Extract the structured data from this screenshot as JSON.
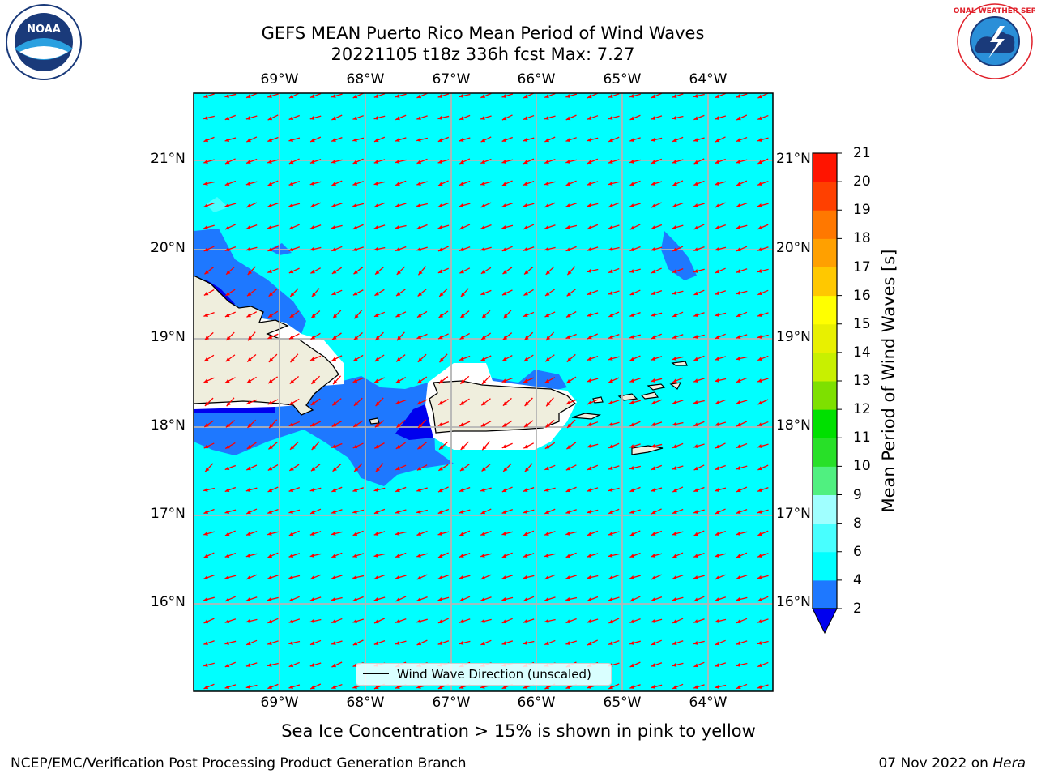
{
  "title_line1": "GEFS MEAN Puerto Rico Mean Period of Wind Waves",
  "title_line2": "20221105 t18z 336h fcst   Max: 7.27",
  "lon_ticks": [
    "69°W",
    "68°W",
    "67°W",
    "66°W",
    "65°W",
    "64°W"
  ],
  "lat_ticks": [
    "21°N",
    "20°N",
    "19°N",
    "18°N",
    "17°N",
    "16°N"
  ],
  "colorbar": {
    "label": "Mean Period of Wind Waves [s]",
    "ticks": [
      "2",
      "4",
      "6",
      "8",
      "9",
      "10",
      "11",
      "12",
      "13",
      "14",
      "15",
      "16",
      "17",
      "18",
      "19",
      "20",
      "21"
    ],
    "colors": [
      "#0000ee",
      "#1e78ff",
      "#00ffff",
      "#48ffff",
      "#a0ffff",
      "#50f080",
      "#28e028",
      "#00e000",
      "#7ee000",
      "#c8f000",
      "#e8f000",
      "#ffff00",
      "#ffc800",
      "#ffa000",
      "#ff7800",
      "#ff4000",
      "#ff1400",
      "#ff0000"
    ]
  },
  "legend_label": "Wind Wave Direction (unscaled)",
  "note": "Sea Ice Concentration > 15% is shown in pink to yellow",
  "footer_left": "NCEP/EMC/Verification Post Processing Product Generation Branch",
  "footer_right_prefix": "07 Nov 2022 on ",
  "footer_right_machine": "Hera",
  "logos": {
    "noaa": "NOAA",
    "nws_text": "NATIONAL WEATHER SERVICE"
  },
  "colors": {
    "ocean": "#00ffff",
    "period_4_6": "#1e78ff",
    "period_2_4": "#0000ee",
    "land": "#efeedd",
    "arrow": "#ff0000"
  }
}
